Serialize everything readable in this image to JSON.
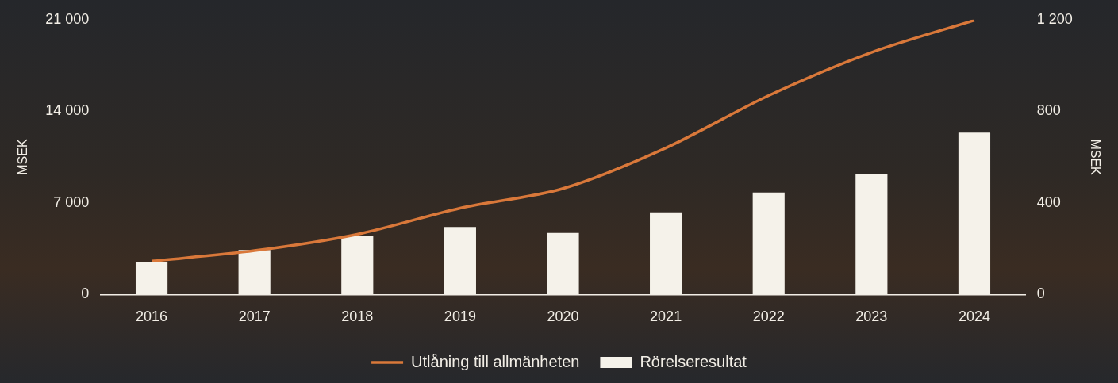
{
  "chart_data": {
    "type": "bar",
    "categories": [
      "2016",
      "2017",
      "2018",
      "2019",
      "2020",
      "2021",
      "2022",
      "2023",
      "2024"
    ],
    "series": [
      {
        "name": "Rörelseresultat",
        "type": "bar",
        "color": "#f5f2ea",
        "axis": "y2",
        "values": [
          142,
          194,
          254,
          295,
          269,
          359,
          445,
          527,
          707
        ]
      },
      {
        "name": "Utlåning till allmänheten",
        "type": "line",
        "color": "#d9783a",
        "values": [
          2550,
          3350,
          4600,
          6600,
          8100,
          11200,
          15200,
          18500,
          20950
        ]
      }
    ],
    "ylabel": "MSEK",
    "y2label": "MSEK",
    "ylim": [
      0,
      21000
    ],
    "yticks": [
      0,
      {
        "value": 7000,
        "label": "7 000"
      },
      {
        "value": 14000,
        "label": "14 000"
      },
      {
        "value": 21000,
        "label": "21 000"
      }
    ],
    "y2lim": [
      0,
      1200
    ],
    "y2ticks": [
      0,
      400,
      800,
      {
        "value": 1200,
        "label": "1 200"
      }
    ],
    "grid": false,
    "legend": "bottom"
  }
}
